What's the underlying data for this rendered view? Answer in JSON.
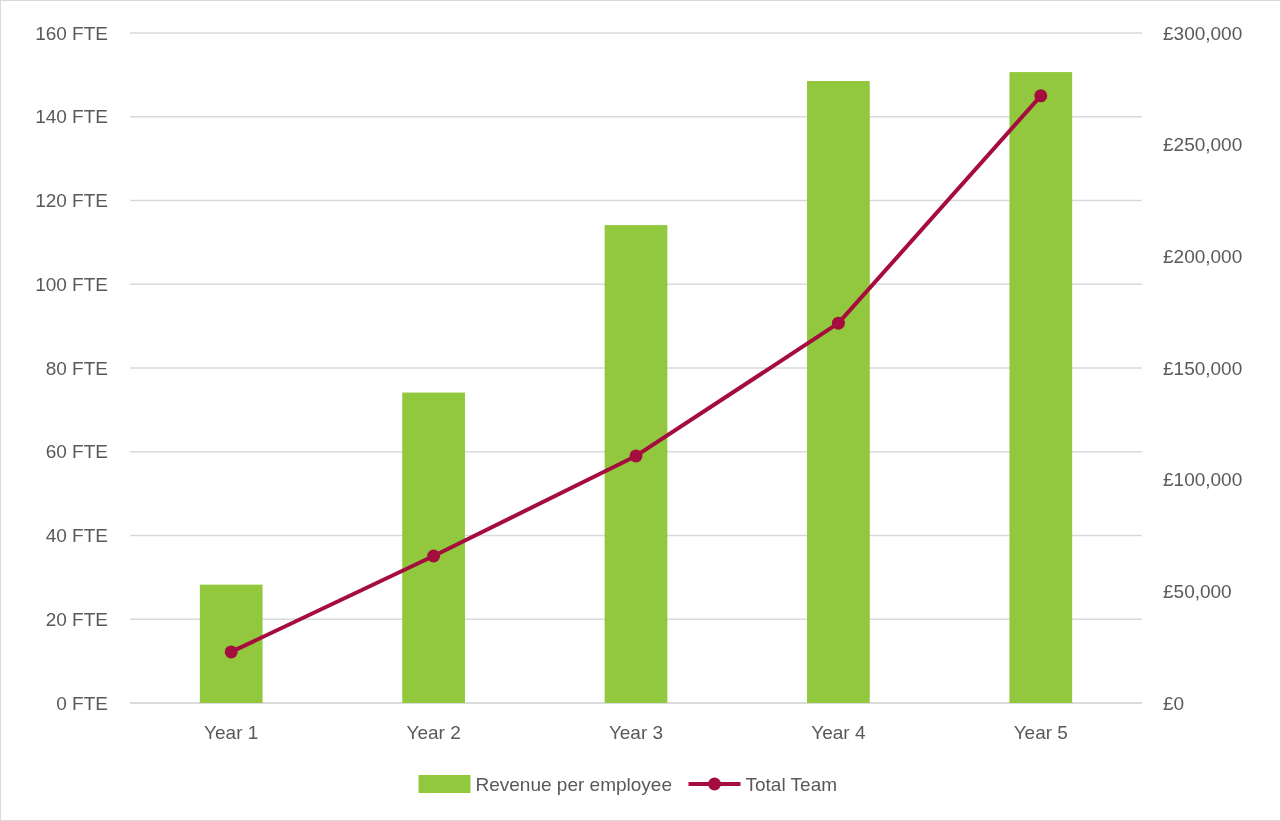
{
  "chart_data": {
    "type": "bar",
    "categories": [
      "Year 1",
      "Year 2",
      "Year 3",
      "Year 4",
      "Year 5"
    ],
    "series": [
      {
        "name": "Revenue per employee",
        "axis": "y2",
        "color": "#92c83e",
        "values": [
          53000,
          139000,
          214000,
          278500,
          282500
        ]
      },
      {
        "name": "Total Team",
        "type": "line",
        "color": "#a50d3f",
        "values": [
          12.2,
          35.1,
          59,
          90.7,
          145
        ]
      }
    ],
    "ylim": [
      0,
      160
    ],
    "yticks": [
      {
        "value": 0,
        "label": "0 FTE"
      },
      {
        "value": 20,
        "label": "20 FTE"
      },
      {
        "value": 40,
        "label": "40 FTE"
      },
      {
        "value": 60,
        "label": "60 FTE"
      },
      {
        "value": 80,
        "label": "80 FTE"
      },
      {
        "value": 100,
        "label": "100 FTE"
      },
      {
        "value": 120,
        "label": "120 FTE"
      },
      {
        "value": 140,
        "label": "140 FTE"
      },
      {
        "value": 160,
        "label": "160 FTE"
      }
    ],
    "y2lim": [
      0,
      300000
    ],
    "y2ticks": [
      {
        "value": 0,
        "label": "£0"
      },
      {
        "value": 50000,
        "label": "£50,000"
      },
      {
        "value": 100000,
        "label": "£100,000"
      },
      {
        "value": 150000,
        "label": "£150,000"
      },
      {
        "value": 200000,
        "label": "£200,000"
      },
      {
        "value": 250000,
        "label": "£250,000"
      },
      {
        "value": 300000,
        "label": "£300,000"
      }
    ],
    "grid": "y",
    "legend": "bottom",
    "marker": "circle",
    "line_style": "solid"
  }
}
